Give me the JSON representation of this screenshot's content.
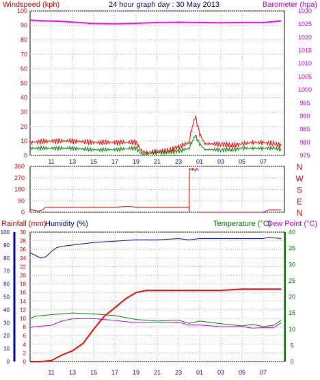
{
  "chart_data": [
    {
      "type": "line",
      "title": "24 hour graph day : 30 May 2013",
      "ylabel": "Windspeed (kph)",
      "y2label": "Barometer (hpa)",
      "ylim": [
        0,
        100
      ],
      "y2lim": [
        975,
        1030
      ],
      "y_ticks": [
        "0",
        "10",
        "20",
        "30",
        "40",
        "50",
        "60",
        "70",
        "80",
        "90",
        "100"
      ],
      "y2_ticks": [
        "975",
        "980",
        "985",
        "990",
        "995",
        "1000",
        "1005",
        "1010",
        "1015",
        "1020",
        "1025",
        "1030"
      ],
      "x_ticks": [
        "11",
        "13",
        "15",
        "17",
        "19",
        "21",
        "23",
        "01",
        "03",
        "05",
        "07"
      ],
      "colors": {
        "wind": "#ff0000",
        "gust": "#008000",
        "barometer": "#ff00ff"
      },
      "series": [
        {
          "values_x": [
            9.0,
            11,
            13,
            15,
            17,
            19,
            19.5,
            20,
            21,
            22,
            23,
            24,
            24.3,
            24.6,
            25,
            25.5,
            26,
            27,
            28,
            29,
            30,
            31,
            32,
            32.7
          ],
          "values": [
            9,
            10,
            10,
            9,
            9,
            9,
            3,
            2,
            3,
            3,
            6,
            9,
            20,
            27,
            15,
            8,
            8,
            8,
            7,
            8,
            9,
            9,
            8,
            7
          ]
        },
        {
          "values_x": [
            9.0,
            11,
            13,
            15,
            17,
            19,
            19.5,
            20,
            21,
            22,
            23,
            24,
            24.3,
            24.6,
            25,
            25.5,
            26,
            27,
            28,
            29,
            30,
            31,
            32,
            32.7
          ],
          "values": [
            5,
            5,
            5,
            4,
            4,
            5,
            1,
            1,
            2,
            2,
            3,
            5,
            10,
            14,
            8,
            4,
            4,
            4,
            4,
            5,
            5,
            5,
            5,
            4
          ]
        },
        {
          "values_x": [
            9.0,
            10,
            12,
            14,
            15,
            16,
            17,
            19,
            21,
            23,
            25,
            27,
            29,
            31,
            32.7
          ],
          "values": [
            1026.5,
            1026.3,
            1026,
            1025.5,
            1025.2,
            1025.2,
            1025.1,
            1025.3,
            1025.6,
            1025.7,
            1025.6,
            1025.5,
            1025.6,
            1025.6,
            1026.2
          ]
        }
      ]
    },
    {
      "type": "line",
      "right_labels": [
        "N",
        "W",
        "S",
        "E",
        "N"
      ],
      "y_ticks": [
        "0",
        "90",
        "180",
        "270",
        "360"
      ],
      "ylim": [
        0,
        360
      ],
      "x_ticks": [
        "11",
        "13",
        "15",
        "17",
        "19",
        "21",
        "23",
        "01",
        "03",
        "05",
        "07"
      ],
      "colors": {
        "direction": "#cc0000"
      },
      "series": [
        {
          "values_x": [
            9.0,
            9.4,
            9.8,
            10.2,
            10.4,
            11,
            14,
            17,
            18,
            18.5,
            19,
            20,
            22,
            23,
            24.0
          ],
          "values": [
            20,
            15,
            8,
            20,
            38,
            40,
            40,
            40,
            45,
            45,
            40,
            40,
            40,
            40,
            40
          ]
        },
        {
          "values_x": [
            24.0,
            24.05,
            24.3,
            24.35,
            24.6,
            24.7,
            24.9
          ],
          "values": [
            0,
            345,
            330,
            345,
            325,
            345,
            330
          ]
        },
        {
          "values_x": [
            24.9,
            25.0,
            27,
            31,
            31.5,
            32.7
          ],
          "values": [
            0,
            0,
            0,
            0,
            18,
            18
          ]
        }
      ]
    },
    {
      "type": "line",
      "left_labels": [
        "Rainfall (mm)",
        "Humidity (%)"
      ],
      "right_labels": [
        "Temperature (°C)",
        "Dew Point (°C)"
      ],
      "y_ticks_humidity": [
        "0",
        "10",
        "20",
        "30",
        "40",
        "50",
        "60",
        "70",
        "80",
        "90",
        "100"
      ],
      "y_ticks_rainfall": [
        "0",
        "2",
        "4",
        "6",
        "8",
        "10",
        "12",
        "14",
        "16",
        "18",
        "20",
        "22",
        "24",
        "26",
        "28",
        "30"
      ],
      "y_ticks_temperature": [
        "0",
        "5",
        "10",
        "15",
        "20",
        "25",
        "30",
        "35",
        "40"
      ],
      "ylim_rainfall": [
        0,
        30
      ],
      "ylim_humidity": [
        0,
        100
      ],
      "ylim_temperature": [
        0,
        40
      ],
      "x_ticks": [
        "11",
        "13",
        "15",
        "17",
        "19",
        "21",
        "23",
        "01",
        "03",
        "05",
        "07"
      ],
      "colors": {
        "rainfall": "#ff0000",
        "humidity": "#0000a0",
        "temperature": "#008000",
        "dewpoint": "#cc00cc"
      },
      "series": [
        {
          "values_x": [
            9.0,
            10,
            11,
            12,
            13,
            14,
            15,
            16,
            17,
            18,
            19,
            20,
            21,
            23,
            25,
            27,
            29,
            31,
            32.7
          ],
          "values": [
            0,
            0,
            0.2,
            1.5,
            2.5,
            4.2,
            7.5,
            10.5,
            12.5,
            14.5,
            16,
            16.5,
            16.5,
            16.5,
            16.5,
            16.5,
            16.8,
            16.8,
            16.8
          ]
        },
        {
          "values_x": [
            9.0,
            9.5,
            10,
            10.5,
            11,
            11.5,
            12,
            13,
            14,
            15,
            17,
            19,
            21,
            23,
            24,
            25,
            27,
            29,
            31,
            31.5,
            32.7
          ],
          "values": [
            84,
            82,
            80,
            81,
            85,
            88,
            89,
            90,
            91,
            92,
            93,
            94,
            94,
            95,
            94,
            95,
            95,
            95,
            95,
            96,
            95
          ]
        },
        {
          "values_x": [
            9.0,
            9.5,
            11,
            13,
            15,
            17,
            19,
            21,
            23,
            24,
            25,
            27,
            29,
            30,
            31,
            32,
            32.7
          ],
          "values": [
            13.3,
            14,
            14.5,
            15,
            14.7,
            14.2,
            13,
            12.5,
            12.8,
            11.8,
            12.5,
            11.7,
            11,
            11.5,
            10.8,
            11.2,
            12.8
          ]
        },
        {
          "values_x": [
            9.0,
            9.5,
            11,
            12,
            13,
            15,
            17,
            19,
            21,
            23,
            24,
            25,
            27,
            29,
            30,
            31,
            32,
            32.7
          ],
          "values": [
            10.5,
            10.8,
            11.2,
            12.5,
            13.2,
            13.3,
            12.7,
            12,
            12,
            12.2,
            11.3,
            11.3,
            10.8,
            10.8,
            10.3,
            10.5,
            10.5,
            12
          ]
        }
      ]
    }
  ]
}
